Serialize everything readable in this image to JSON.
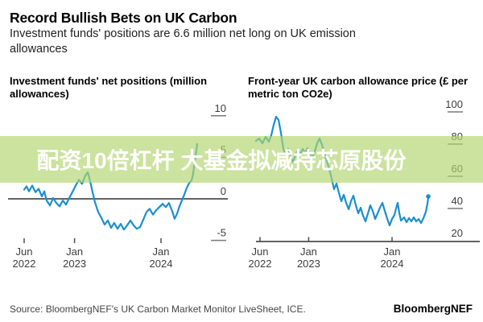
{
  "header": {
    "title": "Record Bullish Bets on UK Carbon",
    "subtitle": "Investment funds' positions are 6.6 million net long on UK emission allowances"
  },
  "overlay": {
    "text": "配资10倍杠杆 大基金拟减持芯原股份",
    "bg_color": "#cbe39e"
  },
  "footer": {
    "source": "Source: BloombergNEF's UK Carbon Market Monitor LiveSheet, ICE.",
    "brand": "BloombergNEF"
  },
  "colors": {
    "line": "#1b8fd0",
    "axis": "#4d4d4d",
    "tick": "#7a7a7a",
    "overlay_fill": "rgba(176,213,108,0.66)"
  },
  "chart_data": [
    {
      "type": "line",
      "title": "Investment funds' net positions (million allowances)",
      "xlabel": "",
      "ylabel": "million allowances",
      "x_unit": "months since Jun 2022",
      "ylim": [
        -6.5,
        10.5
      ],
      "grid": false,
      "zero_line": true,
      "y_ticks": [
        10,
        5,
        0,
        -5
      ],
      "x_ticks": [
        {
          "m": 0,
          "l1": "Jun",
          "l2": "2022"
        },
        {
          "m": 7,
          "l1": "Jan",
          "l2": "2023"
        },
        {
          "m": 19,
          "l1": "Jan",
          "l2": "2024"
        }
      ],
      "series": [
        {
          "name": "Investment funds' net positions",
          "points": [
            [
              0,
              1.1
            ],
            [
              0.34,
              1.5
            ],
            [
              0.67,
              0.9
            ],
            [
              1.12,
              1.6
            ],
            [
              1.56,
              0.8
            ],
            [
              2.01,
              1.2
            ],
            [
              2.46,
              0.3
            ],
            [
              2.79,
              0.9
            ],
            [
              3.13,
              -0.2
            ],
            [
              3.58,
              -0.8
            ],
            [
              4.02,
              0.1
            ],
            [
              4.47,
              -0.5
            ],
            [
              4.92,
              -0.9
            ],
            [
              5.36,
              -0.2
            ],
            [
              5.81,
              -0.7
            ],
            [
              6.26,
              0.1
            ],
            [
              6.7,
              0.8
            ],
            [
              7.15,
              1.6
            ],
            [
              7.6,
              2.3
            ],
            [
              8.04,
              1.8
            ],
            [
              8.49,
              2.8
            ],
            [
              8.83,
              3.2
            ],
            [
              9.16,
              2.1
            ],
            [
              9.5,
              0.8
            ],
            [
              9.83,
              -0.4
            ],
            [
              10.28,
              -1.6
            ],
            [
              10.73,
              -2.3
            ],
            [
              11.17,
              -3.1
            ],
            [
              11.62,
              -2.6
            ],
            [
              12.07,
              -3.5
            ],
            [
              12.51,
              -2.9
            ],
            [
              12.96,
              -3.6
            ],
            [
              13.41,
              -3.0
            ],
            [
              13.85,
              -3.7
            ],
            [
              14.3,
              -3.2
            ],
            [
              14.75,
              -2.6
            ],
            [
              15.2,
              -3.2
            ],
            [
              15.64,
              -3.6
            ],
            [
              16.09,
              -3.4
            ],
            [
              16.54,
              -2.5
            ],
            [
              16.98,
              -1.6
            ],
            [
              17.43,
              -1.2
            ],
            [
              17.88,
              -1.9
            ],
            [
              18.32,
              -1.4
            ],
            [
              18.77,
              -1.0
            ],
            [
              19.22,
              -0.6
            ],
            [
              19.66,
              -1.0
            ],
            [
              20.11,
              -0.5
            ],
            [
              20.56,
              -1.5
            ],
            [
              20.89,
              -2.4
            ],
            [
              21.23,
              -1.8
            ],
            [
              21.56,
              -0.9
            ],
            [
              21.9,
              -0.2
            ],
            [
              22.23,
              0.5
            ],
            [
              22.57,
              1.3
            ],
            [
              22.91,
              1.9
            ],
            [
              23.24,
              2.2
            ],
            [
              23.46,
              3.0
            ],
            [
              23.69,
              4.5
            ],
            [
              23.91,
              5.8
            ],
            [
              24.02,
              6.6
            ]
          ]
        }
      ]
    },
    {
      "type": "line",
      "title": "Front-year UK carbon allowance price (£ per metric ton CO2e)",
      "xlabel": "",
      "ylabel": "£ per metric ton CO2e",
      "x_unit": "months since Jun 2022",
      "ylim": [
        15,
        100
      ],
      "grid": false,
      "zero_line": false,
      "y_ticks": [
        100,
        80,
        60,
        40,
        20
      ],
      "x_ticks": [
        {
          "m": 0,
          "l1": "Jun",
          "l2": "2022"
        },
        {
          "m": 7,
          "l1": "Jan",
          "l2": "2023"
        },
        {
          "m": 19,
          "l1": "Jan",
          "l2": "2024"
        }
      ],
      "series": [
        {
          "name": "Front-year UK carbon allowance price",
          "points": [
            [
              -0.58,
              82
            ],
            [
              -0.12,
              83.5
            ],
            [
              0.35,
              80.5
            ],
            [
              0.81,
              84.5
            ],
            [
              1.27,
              81.5
            ],
            [
              1.62,
              85.5
            ],
            [
              1.97,
              92
            ],
            [
              2.32,
              97
            ],
            [
              2.67,
              95
            ],
            [
              3.01,
              87
            ],
            [
              3.36,
              77
            ],
            [
              3.71,
              73.5
            ],
            [
              4.06,
              77
            ],
            [
              4.4,
              72
            ],
            [
              4.75,
              69
            ],
            [
              5.1,
              73
            ],
            [
              5.45,
              76.5
            ],
            [
              5.79,
              73.5
            ],
            [
              6.14,
              77
            ],
            [
              6.49,
              74.5
            ],
            [
              6.84,
              77.5
            ],
            [
              7.18,
              74.5
            ],
            [
              7.53,
              71.5
            ],
            [
              7.88,
              75.5
            ],
            [
              8.23,
              80.5
            ],
            [
              8.57,
              83.5
            ],
            [
              8.92,
              79.5
            ],
            [
              9.27,
              74.5
            ],
            [
              9.62,
              69.5
            ],
            [
              9.97,
              64.5
            ],
            [
              10.31,
              58.5
            ],
            [
              10.66,
              52
            ],
            [
              11.01,
              55.5
            ],
            [
              11.36,
              49.5
            ],
            [
              11.7,
              44.5
            ],
            [
              12.05,
              48.5
            ],
            [
              12.4,
              43.5
            ],
            [
              12.75,
              39.5
            ],
            [
              13.09,
              44.5
            ],
            [
              13.44,
              48
            ],
            [
              13.79,
              42
            ],
            [
              14.14,
              37
            ],
            [
              14.48,
              40.5
            ],
            [
              14.83,
              35.5
            ],
            [
              15.18,
              32
            ],
            [
              15.53,
              37
            ],
            [
              15.87,
              42
            ],
            [
              16.22,
              38.5
            ],
            [
              16.57,
              33.5
            ],
            [
              16.92,
              37
            ],
            [
              17.26,
              40.5
            ],
            [
              17.61,
              43.5
            ],
            [
              17.96,
              38.5
            ],
            [
              18.31,
              33.5
            ],
            [
              18.65,
              29.5
            ],
            [
              19,
              33.5
            ],
            [
              19.35,
              36
            ],
            [
              19.58,
              40
            ],
            [
              19.81,
              43.5
            ],
            [
              20.05,
              37
            ],
            [
              20.28,
              32.5
            ],
            [
              20.74,
              34.5
            ],
            [
              21.09,
              31.5
            ],
            [
              21.44,
              34
            ],
            [
              21.78,
              32
            ],
            [
              22.13,
              34.5
            ],
            [
              22.48,
              32
            ],
            [
              22.83,
              33.5
            ],
            [
              23.17,
              31
            ],
            [
              23.52,
              34
            ],
            [
              23.87,
              38
            ],
            [
              24.1,
              43
            ],
            [
              24.22,
              47.5
            ]
          ]
        }
      ]
    }
  ]
}
